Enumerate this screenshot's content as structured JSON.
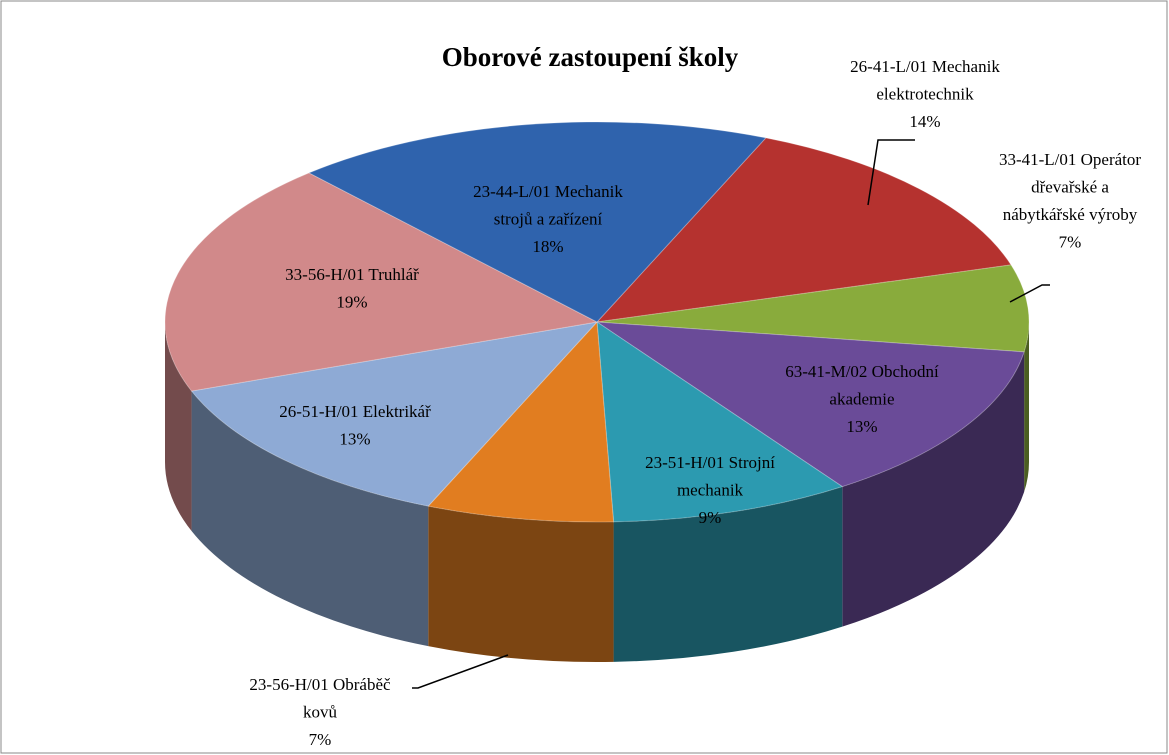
{
  "chart_data": {
    "type": "pie",
    "title": "Oborové zastoupení školy",
    "categories": [
      "26-41-L/01 Mechanik elektrotechnik",
      "33-41-L/01 Operátor dřevařské a nábytkářské výroby",
      "63-41-M/02 Obchodní akademie",
      "23-51-H/01 Strojní mechanik",
      "23-56-H/01 Obráběč kovů",
      "26-51-H/01 Elektrikář",
      "33-56-H/01 Truhlář",
      "23-44-L/01 Mechanik strojů a zařízení"
    ],
    "values": [
      14,
      7,
      13,
      9,
      7,
      13,
      19,
      18
    ],
    "value_labels": [
      "14%",
      "7%",
      "13%",
      "9%",
      "7%",
      "13%",
      "19%",
      "18%"
    ],
    "colors": [
      "#b5322f",
      "#89ab3c",
      "#6a4b98",
      "#2c9ab0",
      "#e17d20",
      "#8eaad5",
      "#d1898a",
      "#2f63ad"
    ]
  }
}
